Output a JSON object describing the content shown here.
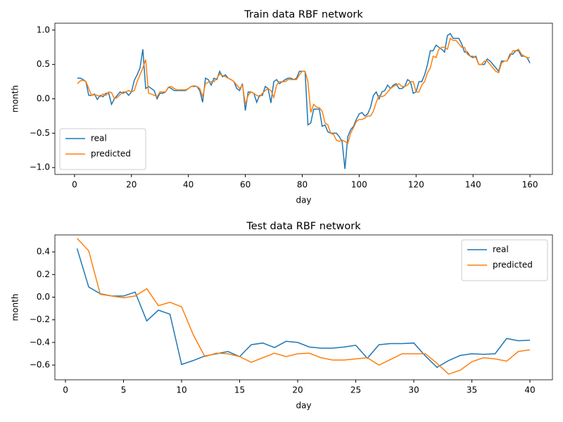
{
  "chart_data": [
    {
      "type": "line",
      "title": "Train data RBF network",
      "xlabel": "day",
      "ylabel": "month",
      "x": [
        1,
        2,
        3,
        4,
        5,
        6,
        7,
        8,
        9,
        10,
        11,
        12,
        13,
        14,
        15,
        16,
        17,
        18,
        19,
        20,
        21,
        22,
        23,
        24,
        25,
        26,
        27,
        28,
        29,
        30,
        31,
        32,
        33,
        34,
        35,
        36,
        37,
        38,
        39,
        40,
        41,
        42,
        43,
        44,
        45,
        46,
        47,
        48,
        49,
        50,
        51,
        52,
        53,
        54,
        55,
        56,
        57,
        58,
        59,
        60,
        61,
        62,
        63,
        64,
        65,
        66,
        67,
        68,
        69,
        70,
        71,
        72,
        73,
        74,
        75,
        76,
        77,
        78,
        79,
        80,
        81,
        82,
        83,
        84,
        85,
        86,
        87,
        88,
        89,
        90,
        91,
        92,
        93,
        94,
        95,
        96,
        97,
        98,
        99,
        100,
        101,
        102,
        103,
        104,
        105,
        106,
        107,
        108,
        109,
        110,
        111,
        112,
        113,
        114,
        115,
        116,
        117,
        118,
        119,
        120,
        121,
        122,
        123,
        124,
        125,
        126,
        127,
        128,
        129,
        130,
        131,
        132,
        133,
        134,
        135,
        136,
        137,
        138,
        139,
        140,
        141,
        142,
        143,
        144,
        145,
        146,
        147,
        148,
        149,
        150,
        151,
        152,
        153,
        154,
        155,
        156,
        157,
        158,
        159,
        160
      ],
      "series": [
        {
          "name": "real",
          "color": "#1f77b4",
          "values": [
            0.3,
            0.3,
            0.28,
            0.25,
            0.05,
            0.05,
            0.07,
            -0.01,
            0.05,
            0.03,
            0.08,
            0.08,
            -0.08,
            0,
            0.05,
            0.1,
            0.08,
            0.1,
            0.05,
            0.1,
            0.27,
            0.35,
            0.45,
            0.72,
            0.15,
            0.18,
            0.15,
            0.12,
            0,
            0.08,
            0.08,
            0.1,
            0.17,
            0.15,
            0.12,
            0.12,
            0.12,
            0.12,
            0.12,
            0.15,
            0.18,
            0.18,
            0.18,
            0.12,
            -0.05,
            0.3,
            0.28,
            0.2,
            0.3,
            0.28,
            0.4,
            0.32,
            0.35,
            0.3,
            0.28,
            0.25,
            0.15,
            0.12,
            0.22,
            -0.17,
            0.1,
            0.1,
            0.08,
            -0.05,
            0.05,
            0.05,
            0.18,
            0.15,
            -0.06,
            0.25,
            0.28,
            0.22,
            0.25,
            0.28,
            0.3,
            0.3,
            0.28,
            0.3,
            0.4,
            0.4,
            0.4,
            -0.38,
            -0.35,
            -0.15,
            -0.15,
            -0.15,
            -0.4,
            -0.38,
            -0.48,
            -0.5,
            -0.5,
            -0.5,
            -0.55,
            -0.62,
            -1.02,
            -0.55,
            -0.45,
            -0.4,
            -0.3,
            -0.22,
            -0.2,
            -0.25,
            -0.22,
            -0.12,
            0.05,
            0.1,
            0,
            0.1,
            0.12,
            0.2,
            0.15,
            0.2,
            0.22,
            0.15,
            0.15,
            0.18,
            0.28,
            0.25,
            0.08,
            0.1,
            0.25,
            0.25,
            0.35,
            0.5,
            0.7,
            0.7,
            0.78,
            0.75,
            0.72,
            0.68,
            0.92,
            0.95,
            0.88,
            0.88,
            0.88,
            0.8,
            0.68,
            0.68,
            0.62,
            0.6,
            0.62,
            0.5,
            0.5,
            0.5,
            0.58,
            0.55,
            0.5,
            0.45,
            0.4,
            0.55,
            0.55,
            0.55,
            0.65,
            0.65,
            0.7,
            0.7,
            0.62,
            0.62,
            0.6,
            0.52
          ]
        },
        {
          "name": "predicted",
          "color": "#ff7f0e",
          "values": [
            0.22,
            0.26,
            0.27,
            0.25,
            0.15,
            0.05,
            0.06,
            0.05,
            0.03,
            0.07,
            0.05,
            0.1,
            0.09,
            0,
            0.02,
            0.06,
            0.1,
            0.1,
            0.12,
            0.1,
            0.12,
            0.25,
            0.35,
            0.45,
            0.57,
            0.08,
            0.07,
            0.05,
            0.03,
            0.1,
            0.1,
            0.1,
            0.17,
            0.18,
            0.15,
            0.13,
            0.13,
            0.13,
            0.13,
            0.15,
            0.18,
            0.19,
            0.18,
            0.15,
            0.03,
            0.22,
            0.24,
            0.25,
            0.25,
            0.3,
            0.36,
            0.34,
            0.32,
            0.3,
            0.28,
            0.25,
            0.2,
            0.15,
            0.2,
            -0.08,
            0.05,
            0.1,
            0.08,
            0.05,
            0.03,
            0.08,
            0.12,
            0.15,
            0.12,
            0.02,
            0.2,
            0.25,
            0.25,
            0.25,
            0.28,
            0.28,
            0.28,
            0.28,
            0.35,
            0.4,
            0.4,
            0.25,
            -0.2,
            -0.08,
            -0.12,
            -0.13,
            -0.18,
            -0.35,
            -0.38,
            -0.5,
            -0.52,
            -0.6,
            -0.62,
            -0.6,
            -0.62,
            -0.65,
            -0.5,
            -0.42,
            -0.33,
            -0.3,
            -0.3,
            -0.28,
            -0.25,
            -0.25,
            -0.18,
            -0.05,
            0.05,
            0.03,
            0.05,
            0.1,
            0.15,
            0.18,
            0.2,
            0.22,
            0.18,
            0.18,
            0.2,
            0.25,
            0.25,
            0.1,
            0.1,
            0.2,
            0.25,
            0.38,
            0.45,
            0.62,
            0.6,
            0.72,
            0.75,
            0.75,
            0.72,
            0.88,
            0.85,
            0.85,
            0.8,
            0.75,
            0.75,
            0.65,
            0.62,
            0.62,
            0.6,
            0.5,
            0.5,
            0.55,
            0.55,
            0.5,
            0.45,
            0.4,
            0.38,
            0.52,
            0.55,
            0.55,
            0.62,
            0.7,
            0.7,
            0.72,
            0.65,
            0.62,
            0.6,
            0.6
          ]
        }
      ],
      "xlim": [
        -6.9,
        167.9
      ],
      "xticks": [
        0,
        20,
        40,
        60,
        80,
        100,
        120,
        140,
        160
      ],
      "ylim": [
        -1.1,
        1.1
      ],
      "yticks": [
        {
          "value": -1,
          "label": "−1.0"
        },
        {
          "value": -0.5,
          "label": "−0.5"
        },
        {
          "value": 0,
          "label": "0.0"
        },
        {
          "value": 0.5,
          "label": "0.5"
        },
        {
          "value": 1,
          "label": "1.0"
        }
      ],
      "legend": "lower left"
    },
    {
      "type": "line",
      "title": "Test data RBF network",
      "xlabel": "day",
      "ylabel": "month",
      "x": [
        1,
        2,
        3,
        4,
        5,
        6,
        7,
        8,
        9,
        10,
        11,
        12,
        13,
        14,
        15,
        16,
        17,
        18,
        19,
        20,
        21,
        22,
        23,
        24,
        25,
        26,
        27,
        28,
        29,
        30,
        31,
        32,
        33,
        34,
        35,
        36,
        37,
        38,
        39,
        40
      ],
      "series": [
        {
          "name": "real",
          "color": "#1f77b4",
          "values": [
            0.43,
            0.09,
            0.03,
            0.01,
            0.01,
            0.045,
            -0.21,
            -0.115,
            -0.15,
            -0.595,
            -0.56,
            -0.52,
            -0.5,
            -0.48,
            -0.525,
            -0.42,
            -0.405,
            -0.445,
            -0.39,
            -0.4,
            -0.44,
            -0.45,
            -0.45,
            -0.44,
            -0.425,
            -0.54,
            -0.42,
            -0.41,
            -0.41,
            -0.405,
            -0.52,
            -0.62,
            -0.56,
            -0.515,
            -0.5,
            -0.505,
            -0.5,
            -0.365,
            -0.385,
            -0.38
          ]
        },
        {
          "name": "predicted",
          "color": "#ff7f0e",
          "values": [
            0.52,
            0.41,
            0.025,
            0.01,
            -0.005,
            0.01,
            0.075,
            -0.075,
            -0.045,
            -0.085,
            -0.33,
            -0.525,
            -0.495,
            -0.5,
            -0.525,
            -0.575,
            -0.535,
            -0.495,
            -0.525,
            -0.5,
            -0.495,
            -0.535,
            -0.555,
            -0.555,
            -0.545,
            -0.535,
            -0.6,
            -0.55,
            -0.5,
            -0.5,
            -0.5,
            -0.585,
            -0.68,
            -0.645,
            -0.57,
            -0.535,
            -0.545,
            -0.565,
            -0.48,
            -0.465
          ]
        }
      ],
      "xlim": [
        -0.91,
        41.94
      ],
      "xticks": [
        0,
        5,
        10,
        15,
        20,
        25,
        30,
        35,
        40
      ],
      "ylim": [
        -0.73,
        0.55
      ],
      "yticks": [
        {
          "value": -0.6,
          "label": "−0.6"
        },
        {
          "value": -0.4,
          "label": "−0.4"
        },
        {
          "value": -0.2,
          "label": "−0.2"
        },
        {
          "value": 0,
          "label": "0.0"
        },
        {
          "value": 0.2,
          "label": "0.2"
        },
        {
          "value": 0.4,
          "label": "0.4"
        }
      ],
      "legend": "upper right"
    }
  ]
}
